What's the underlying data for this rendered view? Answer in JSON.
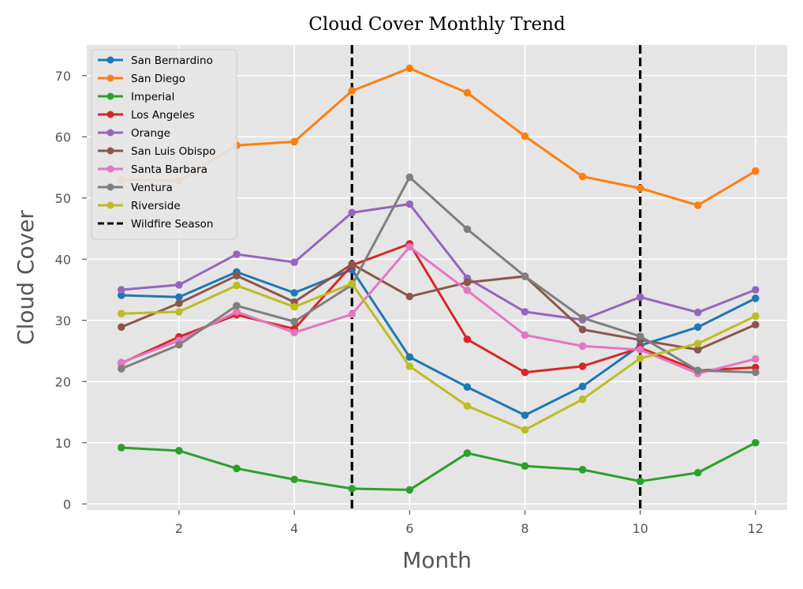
{
  "chart_data": {
    "type": "line",
    "title": "Cloud Cover Monthly Trend",
    "xlabel": "Month",
    "ylabel": "Cloud Cover",
    "xlim": [
      0.4,
      12.55
    ],
    "ylim": [
      -1,
      75
    ],
    "x_ticks": [
      2,
      4,
      6,
      8,
      10,
      12
    ],
    "y_ticks": [
      0,
      10,
      20,
      30,
      40,
      50,
      60,
      70
    ],
    "grid": true,
    "legend_position": "upper-left",
    "x": [
      1,
      2,
      3,
      4,
      5,
      6,
      7,
      8,
      9,
      10,
      11,
      12
    ],
    "series": [
      {
        "name": "San Bernardino",
        "color": "#1f77b4",
        "values": [
          34.1,
          33.8,
          37.9,
          34.5,
          38.3,
          24.0,
          19.1,
          14.5,
          19.2,
          25.9,
          28.9,
          33.6
        ]
      },
      {
        "name": "San Diego",
        "color": "#ff7f0e",
        "values": [
          53.0,
          52.8,
          58.6,
          59.2,
          67.5,
          71.2,
          67.2,
          60.1,
          53.5,
          51.6,
          48.8,
          54.4
        ]
      },
      {
        "name": "Imperial",
        "color": "#2ca02c",
        "values": [
          9.2,
          8.7,
          5.8,
          4.0,
          2.5,
          2.3,
          8.3,
          6.2,
          5.6,
          3.7,
          5.1,
          10.0
        ]
      },
      {
        "name": "Los Angeles",
        "color": "#d62728",
        "values": [
          23.0,
          27.3,
          30.9,
          28.6,
          39.0,
          42.5,
          26.9,
          21.5,
          22.5,
          25.5,
          21.8,
          22.3
        ]
      },
      {
        "name": "Orange",
        "color": "#9467bd",
        "values": [
          35.0,
          35.8,
          40.8,
          39.5,
          47.6,
          49.0,
          36.9,
          31.4,
          30.1,
          33.8,
          31.3,
          35.0
        ]
      },
      {
        "name": "San Luis Obispo",
        "color": "#8c564b",
        "values": [
          28.9,
          32.8,
          37.3,
          33.0,
          39.2,
          33.9,
          36.2,
          37.2,
          28.5,
          26.8,
          25.2,
          29.3
        ]
      },
      {
        "name": "Santa Barbara",
        "color": "#e377c2",
        "values": [
          23.1,
          26.7,
          31.4,
          28.0,
          31.0,
          42.0,
          34.9,
          27.6,
          25.8,
          25.2,
          21.3,
          23.7
        ]
      },
      {
        "name": "Ventura",
        "color": "#7f7f7f",
        "values": [
          22.1,
          26.0,
          32.4,
          29.8,
          35.8,
          53.4,
          44.9,
          37.2,
          30.4,
          27.4,
          21.8,
          21.5
        ]
      },
      {
        "name": "Riverside",
        "color": "#bcbd22",
        "values": [
          31.1,
          31.4,
          35.7,
          32.2,
          36.0,
          22.5,
          16.0,
          12.1,
          17.1,
          23.8,
          26.2,
          30.7
        ]
      }
    ],
    "annotations": [
      {
        "type": "vline",
        "x": 5,
        "label": "Wildfire Season",
        "color": "#000000",
        "style": "dashed"
      },
      {
        "type": "vline",
        "x": 10,
        "label": "",
        "color": "#000000",
        "style": "dashed"
      }
    ]
  }
}
